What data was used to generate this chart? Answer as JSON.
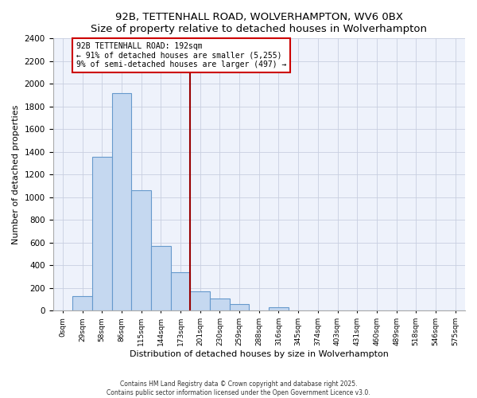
{
  "title": "92B, TETTENHALL ROAD, WOLVERHAMPTON, WV6 0BX",
  "subtitle": "Size of property relative to detached houses in Wolverhampton",
  "xlabel": "Distribution of detached houses by size in Wolverhampton",
  "ylabel": "Number of detached properties",
  "bin_labels": [
    "0sqm",
    "29sqm",
    "58sqm",
    "86sqm",
    "115sqm",
    "144sqm",
    "173sqm",
    "201sqm",
    "230sqm",
    "259sqm",
    "288sqm",
    "316sqm",
    "345sqm",
    "374sqm",
    "403sqm",
    "431sqm",
    "460sqm",
    "489sqm",
    "518sqm",
    "546sqm",
    "575sqm"
  ],
  "bar_heights": [
    0,
    130,
    1360,
    1920,
    1060,
    570,
    340,
    170,
    105,
    62,
    0,
    30,
    0,
    0,
    0,
    0,
    0,
    0,
    0,
    0,
    0
  ],
  "bar_color": "#c5d8f0",
  "bar_edge_color": "#6699cc",
  "vline_x_bin": 7,
  "vline_color": "#990000",
  "annotation_line1": "92B TETTENHALL ROAD: 192sqm",
  "annotation_line2": "← 91% of detached houses are smaller (5,255)",
  "annotation_line3": "9% of semi-detached houses are larger (497) →",
  "annotation_box_color": "#ffffff",
  "annotation_box_edge": "#cc0000",
  "ylim": [
    0,
    2400
  ],
  "yticks": [
    0,
    200,
    400,
    600,
    800,
    1000,
    1200,
    1400,
    1600,
    1800,
    2000,
    2200,
    2400
  ],
  "footer1": "Contains HM Land Registry data © Crown copyright and database right 2025.",
  "footer2": "Contains public sector information licensed under the Open Government Licence v3.0.",
  "bg_color": "#ffffff",
  "plot_bg_color": "#eef2fb",
  "grid_color": "#c8cfe0"
}
